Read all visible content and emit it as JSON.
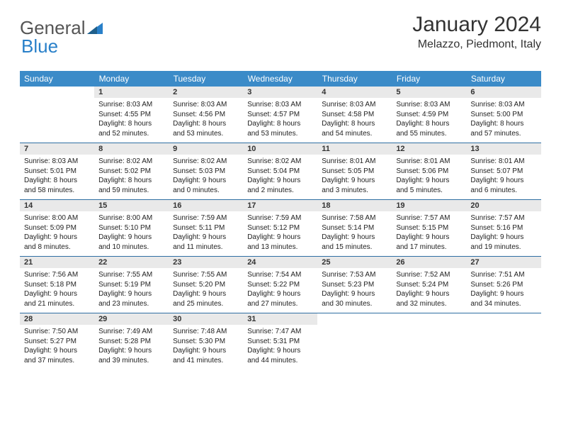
{
  "logo": {
    "part1": "General",
    "part2": "Blue"
  },
  "title": "January 2024",
  "location": "Melazzo, Piedmont, Italy",
  "colors": {
    "header_bg": "#3b8bc8",
    "header_text": "#ffffff",
    "daynum_bg": "#e9e9e9",
    "row_border": "#2f6fa3",
    "logo_blue": "#2980c9"
  },
  "weekdays": [
    "Sunday",
    "Monday",
    "Tuesday",
    "Wednesday",
    "Thursday",
    "Friday",
    "Saturday"
  ],
  "weeks": [
    [
      {
        "n": "",
        "d": ""
      },
      {
        "n": "1",
        "d": "Sunrise: 8:03 AM\nSunset: 4:55 PM\nDaylight: 8 hours and 52 minutes."
      },
      {
        "n": "2",
        "d": "Sunrise: 8:03 AM\nSunset: 4:56 PM\nDaylight: 8 hours and 53 minutes."
      },
      {
        "n": "3",
        "d": "Sunrise: 8:03 AM\nSunset: 4:57 PM\nDaylight: 8 hours and 53 minutes."
      },
      {
        "n": "4",
        "d": "Sunrise: 8:03 AM\nSunset: 4:58 PM\nDaylight: 8 hours and 54 minutes."
      },
      {
        "n": "5",
        "d": "Sunrise: 8:03 AM\nSunset: 4:59 PM\nDaylight: 8 hours and 55 minutes."
      },
      {
        "n": "6",
        "d": "Sunrise: 8:03 AM\nSunset: 5:00 PM\nDaylight: 8 hours and 57 minutes."
      }
    ],
    [
      {
        "n": "7",
        "d": "Sunrise: 8:03 AM\nSunset: 5:01 PM\nDaylight: 8 hours and 58 minutes."
      },
      {
        "n": "8",
        "d": "Sunrise: 8:02 AM\nSunset: 5:02 PM\nDaylight: 8 hours and 59 minutes."
      },
      {
        "n": "9",
        "d": "Sunrise: 8:02 AM\nSunset: 5:03 PM\nDaylight: 9 hours and 0 minutes."
      },
      {
        "n": "10",
        "d": "Sunrise: 8:02 AM\nSunset: 5:04 PM\nDaylight: 9 hours and 2 minutes."
      },
      {
        "n": "11",
        "d": "Sunrise: 8:01 AM\nSunset: 5:05 PM\nDaylight: 9 hours and 3 minutes."
      },
      {
        "n": "12",
        "d": "Sunrise: 8:01 AM\nSunset: 5:06 PM\nDaylight: 9 hours and 5 minutes."
      },
      {
        "n": "13",
        "d": "Sunrise: 8:01 AM\nSunset: 5:07 PM\nDaylight: 9 hours and 6 minutes."
      }
    ],
    [
      {
        "n": "14",
        "d": "Sunrise: 8:00 AM\nSunset: 5:09 PM\nDaylight: 9 hours and 8 minutes."
      },
      {
        "n": "15",
        "d": "Sunrise: 8:00 AM\nSunset: 5:10 PM\nDaylight: 9 hours and 10 minutes."
      },
      {
        "n": "16",
        "d": "Sunrise: 7:59 AM\nSunset: 5:11 PM\nDaylight: 9 hours and 11 minutes."
      },
      {
        "n": "17",
        "d": "Sunrise: 7:59 AM\nSunset: 5:12 PM\nDaylight: 9 hours and 13 minutes."
      },
      {
        "n": "18",
        "d": "Sunrise: 7:58 AM\nSunset: 5:14 PM\nDaylight: 9 hours and 15 minutes."
      },
      {
        "n": "19",
        "d": "Sunrise: 7:57 AM\nSunset: 5:15 PM\nDaylight: 9 hours and 17 minutes."
      },
      {
        "n": "20",
        "d": "Sunrise: 7:57 AM\nSunset: 5:16 PM\nDaylight: 9 hours and 19 minutes."
      }
    ],
    [
      {
        "n": "21",
        "d": "Sunrise: 7:56 AM\nSunset: 5:18 PM\nDaylight: 9 hours and 21 minutes."
      },
      {
        "n": "22",
        "d": "Sunrise: 7:55 AM\nSunset: 5:19 PM\nDaylight: 9 hours and 23 minutes."
      },
      {
        "n": "23",
        "d": "Sunrise: 7:55 AM\nSunset: 5:20 PM\nDaylight: 9 hours and 25 minutes."
      },
      {
        "n": "24",
        "d": "Sunrise: 7:54 AM\nSunset: 5:22 PM\nDaylight: 9 hours and 27 minutes."
      },
      {
        "n": "25",
        "d": "Sunrise: 7:53 AM\nSunset: 5:23 PM\nDaylight: 9 hours and 30 minutes."
      },
      {
        "n": "26",
        "d": "Sunrise: 7:52 AM\nSunset: 5:24 PM\nDaylight: 9 hours and 32 minutes."
      },
      {
        "n": "27",
        "d": "Sunrise: 7:51 AM\nSunset: 5:26 PM\nDaylight: 9 hours and 34 minutes."
      }
    ],
    [
      {
        "n": "28",
        "d": "Sunrise: 7:50 AM\nSunset: 5:27 PM\nDaylight: 9 hours and 37 minutes."
      },
      {
        "n": "29",
        "d": "Sunrise: 7:49 AM\nSunset: 5:28 PM\nDaylight: 9 hours and 39 minutes."
      },
      {
        "n": "30",
        "d": "Sunrise: 7:48 AM\nSunset: 5:30 PM\nDaylight: 9 hours and 41 minutes."
      },
      {
        "n": "31",
        "d": "Sunrise: 7:47 AM\nSunset: 5:31 PM\nDaylight: 9 hours and 44 minutes."
      },
      {
        "n": "",
        "d": ""
      },
      {
        "n": "",
        "d": ""
      },
      {
        "n": "",
        "d": ""
      }
    ]
  ]
}
